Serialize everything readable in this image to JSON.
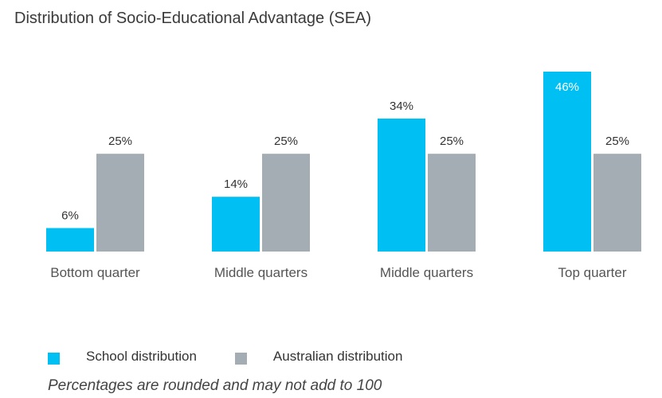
{
  "chart_data": {
    "type": "bar",
    "title": "Distribution of Socio-Educational Advantage (SEA)",
    "categories": [
      "Bottom quarter",
      "Middle quarters",
      "Middle quarters",
      "Top quarter"
    ],
    "series": [
      {
        "name": "School distribution",
        "color": "#00BFF3",
        "values": [
          6,
          14,
          34,
          46
        ],
        "labels": [
          "6%",
          "14%",
          "34%",
          "46%"
        ]
      },
      {
        "name": "Australian distribution",
        "color": "#A5ADB4",
        "values": [
          25,
          25,
          25,
          25
        ],
        "labels": [
          "25%",
          "25%",
          "25%",
          "25%"
        ]
      }
    ],
    "ylim": [
      0,
      46
    ],
    "xlabel": "",
    "ylabel": "",
    "grid": false,
    "legend": "bottom-left"
  },
  "footnote": "Percentages are rounded and may not add to 100"
}
